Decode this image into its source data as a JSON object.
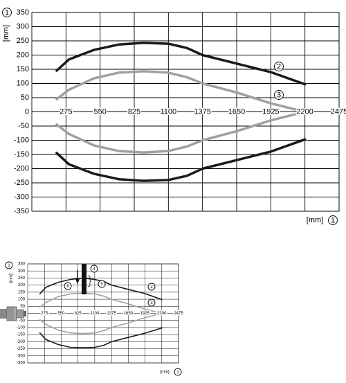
{
  "chart_data": [
    {
      "type": "line",
      "y_label": "[mm]",
      "x_label": "[mm]",
      "axis_marker": "1",
      "markers": [
        "2",
        "3"
      ],
      "x": [
        200,
        300,
        500,
        700,
        900,
        1100,
        1250,
        1375,
        1650,
        1925,
        2200
      ],
      "series": [
        {
          "color": "#1a1a1a",
          "values": [
            145,
            185,
            218,
            237,
            243,
            240,
            225,
            200,
            170,
            140,
            97
          ]
        },
        {
          "color": "#1a1a1a",
          "values": [
            -145,
            -185,
            -218,
            -237,
            -243,
            -240,
            -225,
            -200,
            -170,
            -140,
            -97
          ]
        },
        {
          "color": "#a0a0a0",
          "values": [
            45,
            78,
            118,
            138,
            143,
            138,
            122,
            100,
            68,
            30,
            0
          ]
        },
        {
          "color": "#a0a0a0",
          "values": [
            -45,
            -78,
            -118,
            -138,
            -143,
            -138,
            -122,
            -100,
            -68,
            -30,
            0
          ]
        }
      ],
      "xlim": [
        0,
        2475
      ],
      "xticks": [
        275,
        550,
        825,
        1100,
        1375,
        1650,
        1925,
        2200,
        2475
      ],
      "ylim": [
        -350,
        350
      ],
      "yticks": [
        -350,
        -300,
        -250,
        -200,
        -150,
        -100,
        -50,
        0,
        50,
        100,
        150,
        200,
        250,
        300,
        350
      ],
      "grid": true
    },
    {
      "type": "line",
      "y_label": "[mm]",
      "x_label": "[mm]",
      "axis_marker": "1",
      "markers": [
        "2",
        "3",
        "4",
        "5",
        "6"
      ],
      "x": [
        200,
        300,
        500,
        700,
        900,
        1100,
        1250,
        1375,
        1650,
        1925,
        2200
      ],
      "series": [
        {
          "color": "#1a1a1a",
          "values": [
            138,
            185,
            220,
            240,
            250,
            240,
            225,
            200,
            170,
            140,
            98
          ]
        },
        {
          "color": "#1a1a1a",
          "values": [
            -138,
            -185,
            -220,
            -240,
            -243,
            -240,
            -225,
            -200,
            -170,
            -140,
            -103
          ]
        },
        {
          "color": "#a0a0a0",
          "values": [
            44,
            78,
            118,
            138,
            143,
            138,
            122,
            100,
            68,
            30,
            0
          ]
        },
        {
          "color": "#a0a0a0",
          "values": [
            -44,
            -78,
            -118,
            -138,
            -143,
            -138,
            -122,
            -100,
            -68,
            -30,
            0
          ]
        }
      ],
      "xlim": [
        0,
        2475
      ],
      "xticks": [
        275,
        550,
        825,
        1100,
        1375,
        1650,
        1925,
        2200,
        2475
      ],
      "ylim": [
        -350,
        350
      ],
      "yticks": [
        -350,
        -300,
        -250,
        -200,
        -150,
        -100,
        -50,
        0,
        50,
        100,
        150,
        200,
        250,
        300,
        350
      ],
      "grid": true
    }
  ]
}
